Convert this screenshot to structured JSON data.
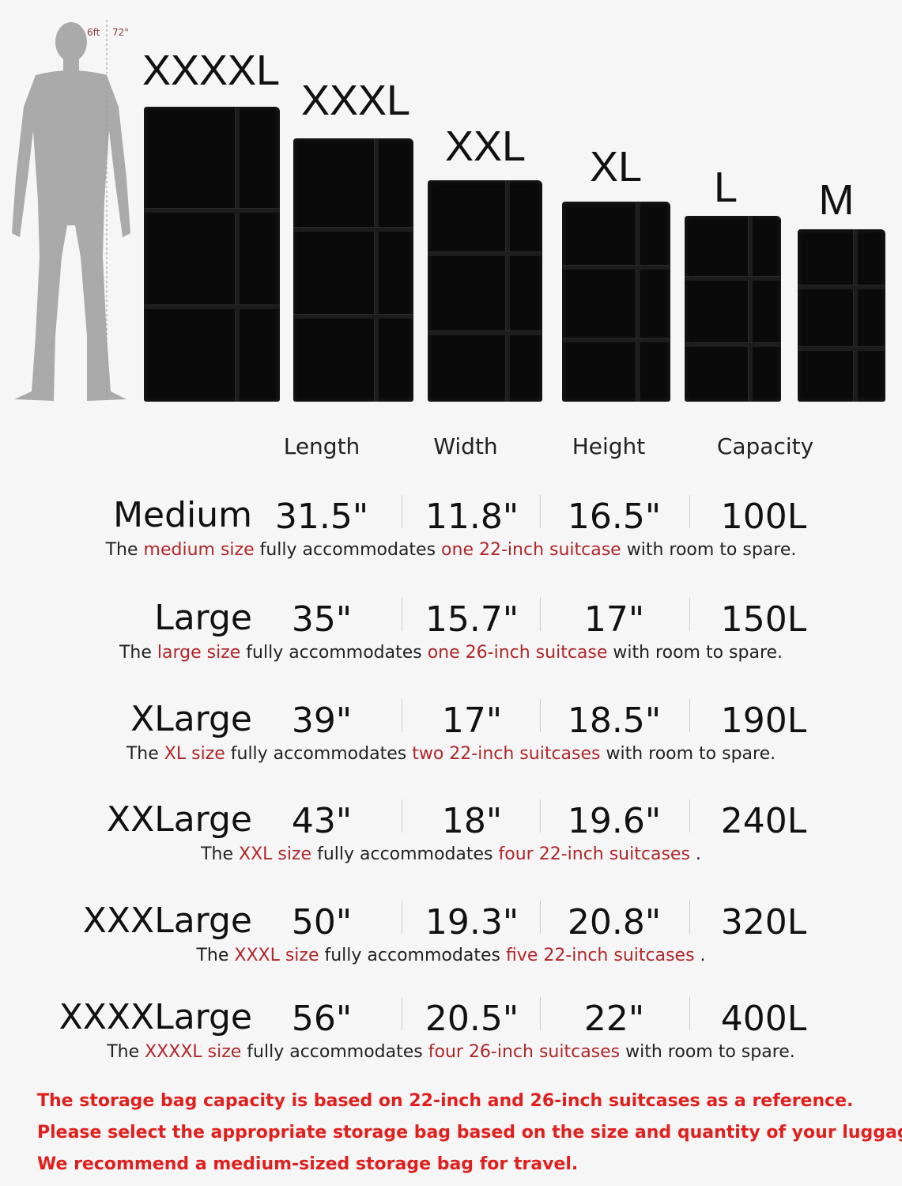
{
  "height_marker": {
    "feet": "6ft",
    "inches": "72\""
  },
  "bag_sizes": [
    "XXXXL",
    "XXXL",
    "XXL",
    "XL",
    "L",
    "M"
  ],
  "headers": [
    "Length",
    "Width",
    "Height",
    "Capacity"
  ],
  "colors": {
    "accent": "#b0262a",
    "footer": "#e0201e",
    "bag": "#0a0a0a",
    "silhouette": "#aaaaaa"
  },
  "rows": [
    {
      "name": "Medium",
      "length": "31.5\"",
      "width": "11.8\"",
      "height": "16.5\"",
      "capacity": "100L",
      "desc": [
        "The ",
        "medium size",
        " fully accommodates ",
        "one 22-inch suitcase",
        " with room to spare."
      ]
    },
    {
      "name": "Large",
      "length": "35\"",
      "width": "15.7\"",
      "height": "17\"",
      "capacity": "150L",
      "desc": [
        "The ",
        "large size",
        " fully accommodates ",
        "one 26-inch suitcase",
        " with room to spare."
      ]
    },
    {
      "name": "XLarge",
      "length": "39\"",
      "width": "17\"",
      "height": "18.5\"",
      "capacity": "190L",
      "desc": [
        "The ",
        "XL size",
        " fully accommodates ",
        "two 22-inch suitcases",
        " with room to spare."
      ]
    },
    {
      "name": "XXLarge",
      "length": "43\"",
      "width": "18\"",
      "height": "19.6\"",
      "capacity": "240L",
      "desc": [
        "The ",
        "XXL size",
        " fully accommodates ",
        "four 22-inch suitcases",
        " ."
      ]
    },
    {
      "name": "XXXLarge",
      "length": "50\"",
      "width": "19.3\"",
      "height": "20.8\"",
      "capacity": "320L",
      "desc": [
        "The ",
        "XXXL size",
        " fully accommodates ",
        "five 22-inch suitcases",
        " ."
      ]
    },
    {
      "name": "XXXXLarge",
      "length": "56\"",
      "width": "20.5\"",
      "height": "22\"",
      "capacity": "400L",
      "desc": [
        "The ",
        "XXXXL size",
        " fully accommodates ",
        "four 26-inch suitcases",
        " with room to spare."
      ]
    }
  ],
  "footer": [
    "The storage bag capacity is based on 22-inch and 26-inch suitcases as a reference.",
    "Please select the appropriate storage bag based on the size and quantity of your luggage.",
    "We recommend a medium-sized storage bag for travel."
  ]
}
